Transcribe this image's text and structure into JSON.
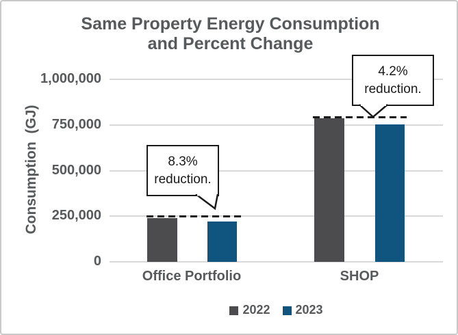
{
  "chart_data": {
    "type": "bar",
    "title": "Same Property Energy Consumption and Percent Change",
    "title_line1": "Same Property Energy Consumption",
    "title_line2": "and Percent Change",
    "ylabel": "Consumption  (GJ)",
    "categories": [
      "Office Portfolio",
      "SHOP"
    ],
    "series": [
      {
        "name": "2022",
        "color": "#4C4C4E",
        "values": [
          240000,
          785000
        ]
      },
      {
        "name": "2023",
        "color": "#0F5580",
        "values": [
          220000,
          752000
        ]
      }
    ],
    "ylim": [
      0,
      1000000
    ],
    "yticks": [
      0,
      250000,
      500000,
      750000,
      1000000
    ],
    "ytick_labels": [
      "0",
      "250,000",
      "500,000",
      "750,000",
      "1,000,000"
    ],
    "grid": true,
    "legend_position": "bottom",
    "annotations": [
      {
        "line1": "8.3%",
        "line2": "reduction.",
        "category": "Office Portfolio"
      },
      {
        "line1": "4.2%",
        "line2": "reduction.",
        "category": "SHOP"
      }
    ],
    "colors": {
      "text": "#58595B",
      "gridline": "#D9D9D9",
      "annotation_ink": "#1A1A1A",
      "bar_2022": "#4C4C4E",
      "bar_2023": "#0F5580"
    }
  }
}
